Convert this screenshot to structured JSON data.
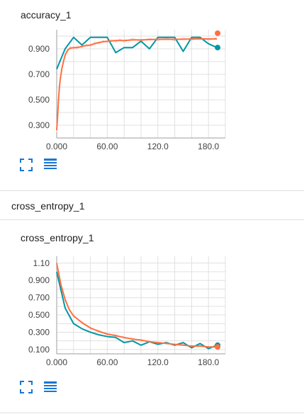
{
  "charts": [
    {
      "title": "accuracy_1"
    },
    {
      "title": "cross_entropy_1"
    }
  ],
  "section": {
    "label": "cross_entropy_1"
  },
  "icons": {
    "fit": "fit-domain-icon",
    "data": "data-table-icon"
  },
  "colors": {
    "teal": "#0097a7",
    "orange": "#ff7043",
    "orange_raw": "#ffccbc",
    "grid": "#e0e0e0",
    "axis": "#9e9e9e",
    "icon": "#1976d2"
  },
  "chart_data": [
    {
      "type": "line",
      "title": "accuracy_1",
      "xlim": [
        0,
        200
      ],
      "ylim": [
        0.2,
        1.05
      ],
      "x_ticks": [
        0,
        60,
        120,
        180
      ],
      "x_tick_labels": [
        "0.000",
        "60.00",
        "120.0",
        "180.0"
      ],
      "y_ticks": [
        0.3,
        0.5,
        0.7,
        0.9
      ],
      "y_tick_labels": [
        "0.300",
        "0.500",
        "0.700",
        "0.900"
      ],
      "grid": true,
      "series": [
        {
          "color": "#0097a7",
          "x": [
            0,
            10,
            20,
            30,
            40,
            50,
            60,
            70,
            80,
            90,
            100,
            110,
            120,
            130,
            140,
            150,
            160,
            170,
            180,
            190
          ],
          "y": [
            0.74,
            0.9,
            0.99,
            0.93,
            0.99,
            0.99,
            0.99,
            0.87,
            0.91,
            0.91,
            0.96,
            0.9,
            0.99,
            0.99,
            0.99,
            0.88,
            0.99,
            0.99,
            0.94,
            0.91
          ]
        },
        {
          "color": "#ff7043",
          "x": [
            0,
            1,
            2,
            3,
            4,
            6,
            8,
            10,
            13,
            16,
            20,
            25,
            30,
            35,
            40,
            45,
            50,
            55,
            60,
            65,
            70,
            75,
            80,
            90,
            100,
            110,
            120,
            130,
            140,
            150,
            160,
            170,
            180,
            190
          ],
          "y": [
            0.26,
            0.36,
            0.48,
            0.58,
            0.65,
            0.74,
            0.8,
            0.85,
            0.89,
            0.905,
            0.91,
            0.91,
            0.92,
            0.925,
            0.93,
            0.94,
            0.95,
            0.955,
            0.96,
            0.962,
            0.965,
            0.965,
            0.965,
            0.97,
            0.97,
            0.972,
            0.975,
            0.975,
            0.975,
            0.975,
            0.978,
            0.978,
            0.978,
            0.978
          ]
        }
      ]
    },
    {
      "type": "line",
      "title": "cross_entropy_1",
      "xlim": [
        0,
        200
      ],
      "ylim": [
        0.05,
        1.18
      ],
      "x_ticks": [
        0,
        60,
        120,
        180
      ],
      "x_tick_labels": [
        "0.000",
        "60.00",
        "120.0",
        "180.0"
      ],
      "y_ticks": [
        0.1,
        0.3,
        0.5,
        0.7,
        0.9,
        1.1
      ],
      "y_tick_labels": [
        "0.100",
        "0.300",
        "0.500",
        "0.700",
        "0.900",
        "1.10"
      ],
      "grid": true,
      "series": [
        {
          "color": "#0097a7",
          "x": [
            0,
            10,
            20,
            30,
            40,
            50,
            60,
            70,
            80,
            90,
            100,
            110,
            120,
            130,
            140,
            150,
            160,
            170,
            180,
            190
          ],
          "y": [
            1.0,
            0.58,
            0.4,
            0.34,
            0.3,
            0.27,
            0.25,
            0.24,
            0.18,
            0.2,
            0.15,
            0.19,
            0.16,
            0.18,
            0.15,
            0.18,
            0.12,
            0.17,
            0.11,
            0.15
          ]
        },
        {
          "color": "#ff7043",
          "x": [
            0,
            5,
            10,
            15,
            20,
            30,
            40,
            50,
            60,
            70,
            80,
            90,
            100,
            110,
            120,
            130,
            140,
            150,
            160,
            170,
            180,
            190
          ],
          "y": [
            1.1,
            0.85,
            0.68,
            0.56,
            0.49,
            0.41,
            0.35,
            0.31,
            0.28,
            0.26,
            0.24,
            0.22,
            0.21,
            0.19,
            0.18,
            0.17,
            0.16,
            0.15,
            0.14,
            0.14,
            0.13,
            0.13
          ]
        }
      ]
    }
  ]
}
